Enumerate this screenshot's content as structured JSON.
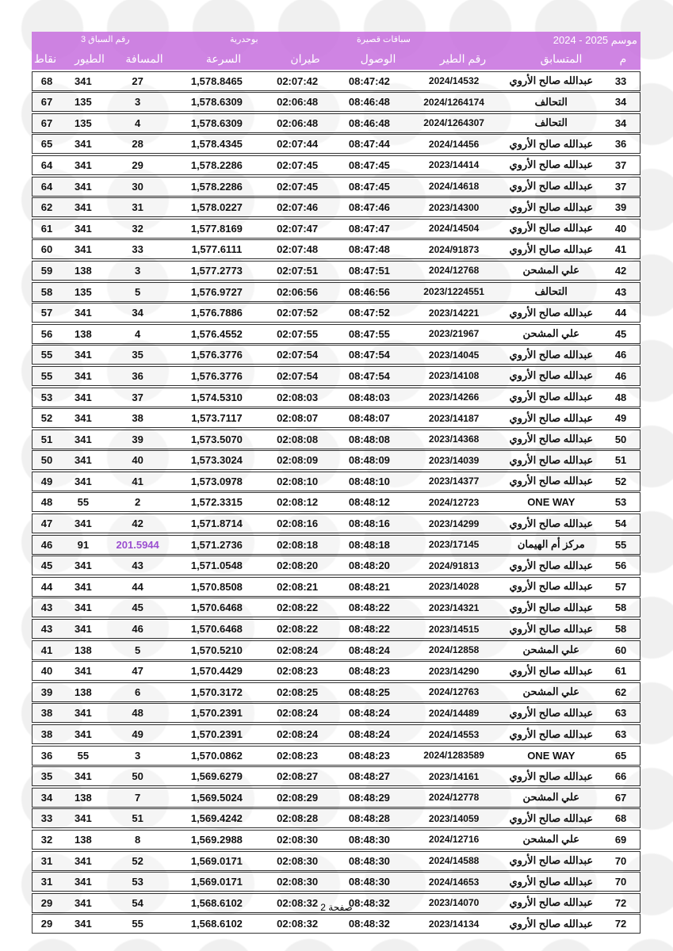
{
  "header": {
    "season": "موسم  2025 - 2024",
    "category": "سباقات قصيرة",
    "location": "بوحدرية",
    "race_no": "رقم السباق   3",
    "columns": [
      "نقاط",
      "الطيور",
      "المسافة",
      "السرعة",
      "طيران",
      "الوصول",
      "رقم الطير",
      "المتسابق",
      "م"
    ]
  },
  "accent": "#c76ede",
  "rows": [
    [
      "68",
      "341",
      "27",
      "1,578.8465",
      "02:07:42",
      "08:47:42",
      "2024/14532",
      "عبدالله صالح الأروي",
      "33"
    ],
    [
      "67",
      "135",
      "3",
      "1,578.6309",
      "02:06:48",
      "08:46:48",
      "2024/1264174",
      "التحالف",
      "34"
    ],
    [
      "67",
      "135",
      "4",
      "1,578.6309",
      "02:06:48",
      "08:46:48",
      "2024/1264307",
      "التحالف",
      "34"
    ],
    [
      "65",
      "341",
      "28",
      "1,578.4345",
      "02:07:44",
      "08:47:44",
      "2024/14456",
      "عبدالله صالح الأروي",
      "36"
    ],
    [
      "64",
      "341",
      "29",
      "1,578.2286",
      "02:07:45",
      "08:47:45",
      "2023/14414",
      "عبدالله صالح الأروي",
      "37"
    ],
    [
      "64",
      "341",
      "30",
      "1,578.2286",
      "02:07:45",
      "08:47:45",
      "2024/14618",
      "عبدالله صالح الأروي",
      "37"
    ],
    [
      "62",
      "341",
      "31",
      "1,578.0227",
      "02:07:46",
      "08:47:46",
      "2023/14300",
      "عبدالله صالح الأروي",
      "39"
    ],
    [
      "61",
      "341",
      "32",
      "1,577.8169",
      "02:07:47",
      "08:47:47",
      "2024/14504",
      "عبدالله صالح الأروي",
      "40"
    ],
    [
      "60",
      "341",
      "33",
      "1,577.6111",
      "02:07:48",
      "08:47:48",
      "2024/91873",
      "عبدالله صالح الأروي",
      "41"
    ],
    [
      "59",
      "138",
      "3",
      "1,577.2773",
      "02:07:51",
      "08:47:51",
      "2024/12768",
      "علي المشحن",
      "42"
    ],
    [
      "58",
      "135",
      "5",
      "1,576.9727",
      "02:06:56",
      "08:46:56",
      "2023/1224551",
      "التحالف",
      "43"
    ],
    [
      "57",
      "341",
      "34",
      "1,576.7886",
      "02:07:52",
      "08:47:52",
      "2023/14221",
      "عبدالله صالح الأروي",
      "44"
    ],
    [
      "56",
      "138",
      "4",
      "1,576.4552",
      "02:07:55",
      "08:47:55",
      "2023/21967",
      "علي المشحن",
      "45"
    ],
    [
      "55",
      "341",
      "35",
      "1,576.3776",
      "02:07:54",
      "08:47:54",
      "2023/14045",
      "عبدالله صالح الأروي",
      "46"
    ],
    [
      "55",
      "341",
      "36",
      "1,576.3776",
      "02:07:54",
      "08:47:54",
      "2023/14108",
      "عبدالله صالح الأروي",
      "46"
    ],
    [
      "53",
      "341",
      "37",
      "1,574.5310",
      "02:08:03",
      "08:48:03",
      "2023/14266",
      "عبدالله صالح الأروي",
      "48"
    ],
    [
      "52",
      "341",
      "38",
      "1,573.7117",
      "02:08:07",
      "08:48:07",
      "2023/14187",
      "عبدالله صالح الأروي",
      "49"
    ],
    [
      "51",
      "341",
      "39",
      "1,573.5070",
      "02:08:08",
      "08:48:08",
      "2023/14368",
      "عبدالله صالح الأروي",
      "50"
    ],
    [
      "50",
      "341",
      "40",
      "1,573.3024",
      "02:08:09",
      "08:48:09",
      "2023/14039",
      "عبدالله صالح الأروي",
      "51"
    ],
    [
      "49",
      "341",
      "41",
      "1,573.0978",
      "02:08:10",
      "08:48:10",
      "2023/14377",
      "عبدالله صالح الأروي",
      "52"
    ],
    [
      "48",
      "55",
      "2",
      "1,572.3315",
      "02:08:12",
      "08:48:12",
      "2024/12723",
      "ONE WAY",
      "53"
    ],
    [
      "47",
      "341",
      "42",
      "1,571.8714",
      "02:08:16",
      "08:48:16",
      "2023/14299",
      "عبدالله صالح الأروي",
      "54"
    ],
    [
      "46",
      "91",
      "201.5944",
      "1,571.2736",
      "02:08:18",
      "08:48:18",
      "2023/17145",
      "مركز أم الهيمان",
      "55"
    ],
    [
      "45",
      "341",
      "43",
      "1,571.0548",
      "02:08:20",
      "08:48:20",
      "2024/91813",
      "عبدالله صالح الأروي",
      "56"
    ],
    [
      "44",
      "341",
      "44",
      "1,570.8508",
      "02:08:21",
      "08:48:21",
      "2023/14028",
      "عبدالله صالح الأروي",
      "57"
    ],
    [
      "43",
      "341",
      "45",
      "1,570.6468",
      "02:08:22",
      "08:48:22",
      "2023/14321",
      "عبدالله صالح الأروي",
      "58"
    ],
    [
      "43",
      "341",
      "46",
      "1,570.6468",
      "02:08:22",
      "08:48:22",
      "2023/14515",
      "عبدالله صالح الأروي",
      "58"
    ],
    [
      "41",
      "138",
      "5",
      "1,570.5210",
      "02:08:24",
      "08:48:24",
      "2024/12858",
      "علي المشحن",
      "60"
    ],
    [
      "40",
      "341",
      "47",
      "1,570.4429",
      "02:08:23",
      "08:48:23",
      "2023/14290",
      "عبدالله صالح الأروي",
      "61"
    ],
    [
      "39",
      "138",
      "6",
      "1,570.3172",
      "02:08:25",
      "08:48:25",
      "2024/12763",
      "علي المشحن",
      "62"
    ],
    [
      "38",
      "341",
      "48",
      "1,570.2391",
      "02:08:24",
      "08:48:24",
      "2024/14489",
      "عبدالله صالح الأروي",
      "63"
    ],
    [
      "38",
      "341",
      "49",
      "1,570.2391",
      "02:08:24",
      "08:48:24",
      "2024/14553",
      "عبدالله صالح الأروي",
      "63"
    ],
    [
      "36",
      "55",
      "3",
      "1,570.0862",
      "02:08:23",
      "08:48:23",
      "2024/1283589",
      "ONE WAY",
      "65"
    ],
    [
      "35",
      "341",
      "50",
      "1,569.6279",
      "02:08:27",
      "08:48:27",
      "2023/14161",
      "عبدالله صالح الأروي",
      "66"
    ],
    [
      "34",
      "138",
      "7",
      "1,569.5024",
      "02:08:29",
      "08:48:29",
      "2024/12778",
      "علي المشحن",
      "67"
    ],
    [
      "33",
      "341",
      "51",
      "1,569.4242",
      "02:08:28",
      "08:48:28",
      "2023/14059",
      "عبدالله صالح الأروي",
      "68"
    ],
    [
      "32",
      "138",
      "8",
      "1,569.2988",
      "02:08:30",
      "08:48:30",
      "2024/12716",
      "علي المشحن",
      "69"
    ],
    [
      "31",
      "341",
      "52",
      "1,569.0171",
      "02:08:30",
      "08:48:30",
      "2024/14588",
      "عبدالله صالح الأروي",
      "70"
    ],
    [
      "31",
      "341",
      "53",
      "1,569.0171",
      "02:08:30",
      "08:48:30",
      "2024/14653",
      "عبدالله صالح الأروي",
      "70"
    ],
    [
      "29",
      "341",
      "54",
      "1,568.6102",
      "02:08:32",
      "08:48:32",
      "2023/14070",
      "عبدالله صالح الأروي",
      "72"
    ],
    [
      "29",
      "341",
      "55",
      "1,568.6102",
      "02:08:32",
      "08:48:32",
      "2023/14134",
      "عبدالله صالح الأروي",
      "72"
    ]
  ],
  "highlight": {
    "row": 22,
    "col": 2,
    "color": "#9b4fd0"
  },
  "footer": "صفحة 2"
}
